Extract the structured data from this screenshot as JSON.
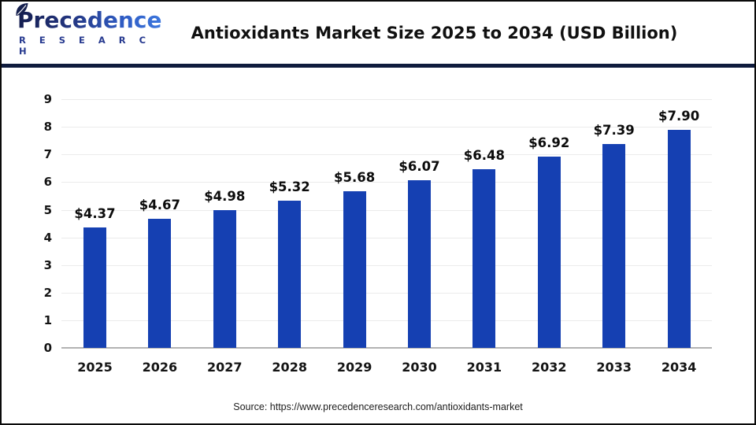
{
  "header": {
    "logo_line1": "Precedence",
    "logo_line2": "R E S E A R C H"
  },
  "footer": {
    "source": "Source: https://www.precedenceresearch.com/antioxidants-market"
  },
  "colors": {
    "bar": "#1540b2",
    "header_rule": "#0f1b3d",
    "gridline": "#ebebeb",
    "axis": "#b3b3b3"
  },
  "chart_data": {
    "type": "bar",
    "title": "Antioxidants Market Size 2025 to 2034 (USD Billion)",
    "categories": [
      "2025",
      "2026",
      "2027",
      "2028",
      "2029",
      "2030",
      "2031",
      "2032",
      "2033",
      "2034"
    ],
    "values": [
      4.37,
      4.67,
      4.98,
      5.32,
      5.68,
      6.07,
      6.48,
      6.92,
      7.39,
      7.9
    ],
    "labels": [
      "$4.37",
      "$4.67",
      "$4.98",
      "$5.32",
      "$5.68",
      "$6.07",
      "$6.48",
      "$6.92",
      "$7.39",
      "$7.90"
    ],
    "xlabel": "",
    "ylabel": "",
    "ylim": [
      0,
      9
    ],
    "ytick_step": 1,
    "grid": true,
    "legend": false,
    "bar_color": "#1540b2"
  }
}
